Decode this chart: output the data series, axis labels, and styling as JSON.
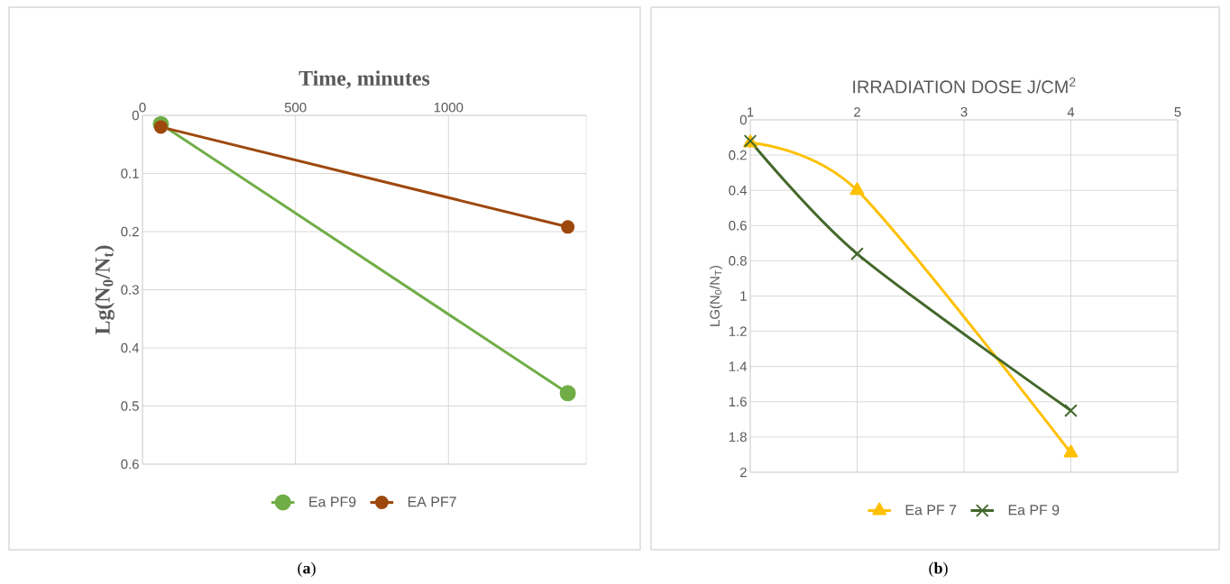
{
  "chart_data": [
    {
      "type": "line",
      "xlabel": "Time, minutes",
      "ylabel": "Lg(N$_{0}$/N$_{t}$)",
      "xlim": [
        0,
        1450
      ],
      "xticks": [
        0,
        500,
        1000
      ],
      "ylim": [
        0.6,
        0
      ],
      "yticks": [
        0,
        0.1,
        0.2,
        0.3,
        0.4,
        0.5,
        0.6
      ],
      "grid": true,
      "legend": "bottom",
      "marker": "circle",
      "series": [
        {
          "name": "Ea PF9",
          "color": "#70ad47",
          "x": [
            60,
            1390
          ],
          "values": [
            0.015,
            0.478
          ]
        },
        {
          "name": "EA PF7",
          "color": "#9e480e",
          "x": [
            60,
            1390
          ],
          "values": [
            0.02,
            0.192
          ]
        }
      ],
      "annotations": [
        "(**a**)"
      ]
    },
    {
      "type": "line",
      "xlabel": "IRRADIATION DOSE J/CM$^{2}$",
      "ylabel": "LG(N$_{0}$/N$_{T}$)",
      "xlim": [
        1,
        5
      ],
      "xticks": [
        1,
        2,
        3,
        4,
        5
      ],
      "ylim": [
        2,
        0
      ],
      "yticks": [
        0,
        0.2,
        0.4,
        0.6,
        0.8,
        1,
        1.2,
        1.4,
        1.6,
        1.8,
        2
      ],
      "grid": true,
      "legend": "bottom",
      "series": [
        {
          "name": "Ea PF 7",
          "color": "#ffc000",
          "marker": "triangle",
          "x": [
            1,
            2,
            4
          ],
          "values": [
            0.13,
            0.4,
            1.89
          ]
        },
        {
          "name": "Ea PF 9",
          "color": "#43682b",
          "marker": "cross",
          "x": [
            1,
            2,
            4
          ],
          "values": [
            0.12,
            0.76,
            1.65
          ]
        }
      ],
      "annotations": [
        "(**b**)"
      ]
    }
  ]
}
